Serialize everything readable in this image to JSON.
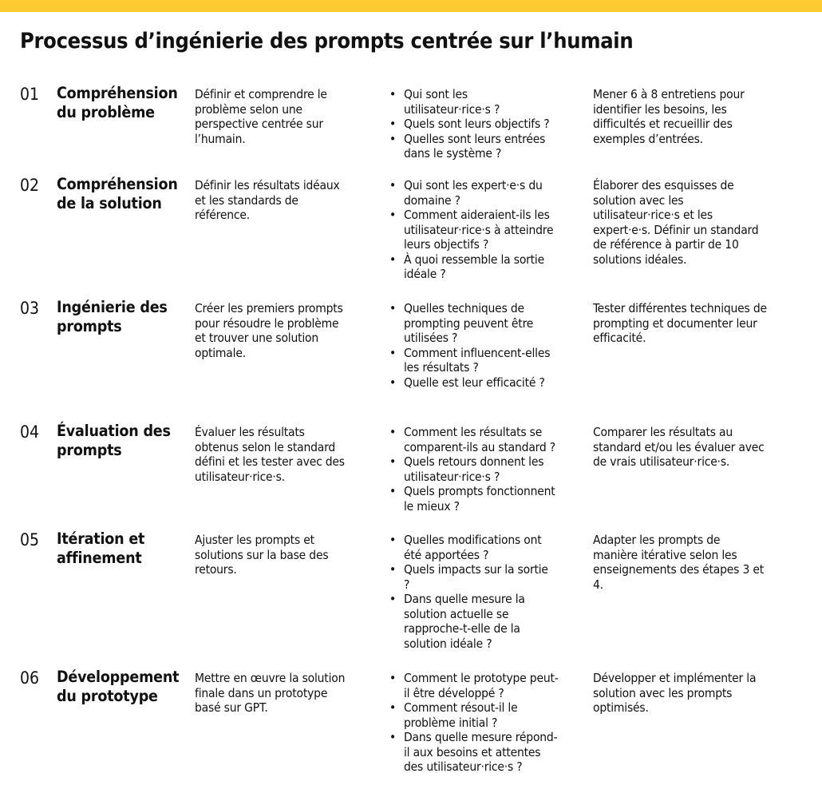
{
  "colors": {
    "accent_bar": "#FFCC33",
    "text": "#111111"
  },
  "title": "Processus d’ingénierie des prompts centrée sur l’humain",
  "bullet": "•",
  "steps": [
    {
      "num": "01",
      "title": "Compréhension\ndu problème",
      "desc": "Définir et comprendre le\nproblème selon une\nperspective centrée sur\nl’humain.",
      "questions": [
        "Qui sont les\nutilisateur·rice·s ?",
        "Quels sont leurs objectifs ?",
        "Quelles sont leurs entrées\ndans le système ?"
      ],
      "action": "Mener 6 à 8 entretiens pour\nidentifier les besoins, les\ndifficultés et recueillir des\nexemples d’entrées."
    },
    {
      "num": "02",
      "title": "Compréhension\nde la solution",
      "desc": "Définir les résultats idéaux\net les standards de\nréférence.",
      "questions": [
        "Qui sont les expert·e·s du\ndomaine ?",
        "Comment aideraient-ils les\nutilisateur·rice·s à atteindre\nleurs objectifs ?",
        "À quoi ressemble la sortie\nidéale ?"
      ],
      "action": "Élaborer des esquisses de\nsolution avec les\nutilisateur·rice·s et les\nexpert·e·s. Définir un standard\nde référence à partir de 10\nsolutions idéales."
    },
    {
      "num": "03",
      "title": "Ingénierie des\nprompts",
      "desc": "Créer les premiers prompts\npour résoudre le problème\net trouver une solution\noptimale.",
      "questions": [
        "Quelles techniques de\nprompting peuvent être\nutilisées ?",
        "Comment influencent-elles\nles résultats ?",
        "Quelle est leur efficacité ?"
      ],
      "action": "Tester différentes techniques de\nprompting et documenter leur\nefficacité."
    },
    {
      "num": "04",
      "title": "Évaluation des\nprompts",
      "desc": "Évaluer les résultats\nobtenus selon le standard\ndéfini et les tester avec des\nutilisateur·rice·s.",
      "questions": [
        "Comment les résultats se\ncomparent-ils au standard ?",
        "Quels retours donnent les\nutilisateur·rice·s ?",
        "Quels prompts fonctionnent\nle mieux ?"
      ],
      "action": "Comparer les résultats au\nstandard et/ou les évaluer avec\nde vrais utilisateur·rice·s."
    },
    {
      "num": "05",
      "title": "Itération et\naffinement",
      "desc": "Ajuster les prompts et\nsolutions sur la base des\nretours.",
      "questions": [
        "Quelles modifications ont\nété apportées ?",
        "Quels impacts sur la sortie\n?",
        "Dans quelle mesure la\nsolution actuelle se\nrapproche-t-elle de la\nsolution idéale ?"
      ],
      "action": "Adapter les prompts de\nmanière itérative selon les\nenseignements des étapes 3 et\n4."
    },
    {
      "num": "06",
      "title": "Développement\ndu prototype",
      "desc": "Mettre en œuvre la solution\nfinale dans un prototype\nbasé sur GPT.",
      "questions": [
        "Comment le prototype peut-\nil être développé ?",
        "Comment résout-il le\nproblème initial ?",
        "Dans quelle mesure répond-\nil aux besoins et attentes\ndes utilisateur·rice·s ?"
      ],
      "action": "Développer et implémenter la\nsolution avec les prompts\noptimisés."
    }
  ]
}
